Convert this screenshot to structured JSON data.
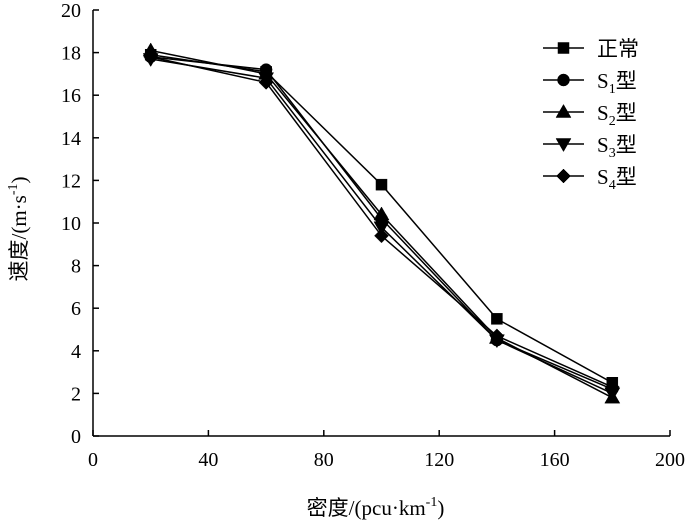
{
  "chart_data": {
    "type": "line",
    "title": "",
    "xlabel": "密度/(pcu·km",
    "xlabel_sup": "-1",
    "xlabel_end": ")",
    "ylabel": "速度/(m·s",
    "ylabel_sup": "-1",
    "ylabel_end": ")",
    "xlim": [
      0,
      200
    ],
    "ylim": [
      0,
      20
    ],
    "xticks": [
      0,
      40,
      80,
      120,
      160,
      200
    ],
    "yticks": [
      0,
      2,
      4,
      6,
      8,
      10,
      12,
      14,
      16,
      18,
      20
    ],
    "x": [
      20,
      60,
      100,
      140,
      180
    ],
    "legend_position": "top-right",
    "series": [
      {
        "name": "正常",
        "name_main": "正常",
        "name_sub": "",
        "name_suffix": "",
        "marker": "square",
        "values": [
          17.9,
          17.1,
          11.8,
          5.5,
          2.5
        ]
      },
      {
        "name": "S1型",
        "name_main": "S",
        "name_sub": "1",
        "name_suffix": "型",
        "marker": "circle",
        "values": [
          17.8,
          17.2,
          10.2,
          4.5,
          2.2
        ]
      },
      {
        "name": "S2型",
        "name_main": "S",
        "name_sub": "2",
        "name_suffix": "型",
        "marker": "triangle-up",
        "values": [
          18.1,
          17.0,
          10.4,
          4.6,
          1.8
        ]
      },
      {
        "name": "S3型",
        "name_main": "S",
        "name_sub": "3",
        "name_suffix": "型",
        "marker": "triangle-down",
        "values": [
          17.7,
          16.8,
          9.8,
          4.5,
          2.0
        ]
      },
      {
        "name": "S4型",
        "name_main": "S",
        "name_sub": "4",
        "name_suffix": "型",
        "marker": "diamond",
        "values": [
          17.8,
          16.6,
          9.4,
          4.7,
          2.3
        ]
      }
    ]
  }
}
